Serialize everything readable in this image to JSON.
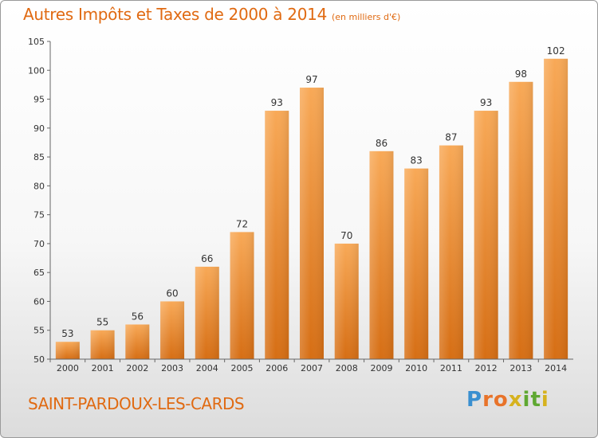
{
  "header": {
    "title": "Autres Impôts et Taxes de 2000 à 2014",
    "unit": "(en milliers d'€)"
  },
  "footer": {
    "place": "SAINT-PARDOUX-LES-CARDS",
    "logo_letters": [
      "P",
      "r",
      "o",
      "x",
      "i",
      "t",
      "i"
    ],
    "logo_colors": [
      "#3a8fd0",
      "#e8732a",
      "#e8732a",
      "#d6b21e",
      "#5fa832",
      "#5fa832",
      "#d6b21e"
    ]
  },
  "chart_data": {
    "type": "bar",
    "title": "Autres Impôts et Taxes de 2000 à 2014",
    "xlabel": "",
    "ylabel": "",
    "categories": [
      "2000",
      "2001",
      "2002",
      "2003",
      "2004",
      "2005",
      "2006",
      "2007",
      "2008",
      "2009",
      "2010",
      "2011",
      "2012",
      "2013",
      "2014"
    ],
    "values": [
      53,
      55,
      56,
      60,
      66,
      72,
      93,
      97,
      70,
      86,
      83,
      87,
      93,
      98,
      102
    ],
    "ylim": [
      50,
      105
    ],
    "yticks": [
      50,
      55,
      60,
      65,
      70,
      75,
      80,
      85,
      90,
      95,
      100,
      105
    ],
    "grid": false,
    "legend": "none",
    "bar_color": "#f08a2c"
  }
}
